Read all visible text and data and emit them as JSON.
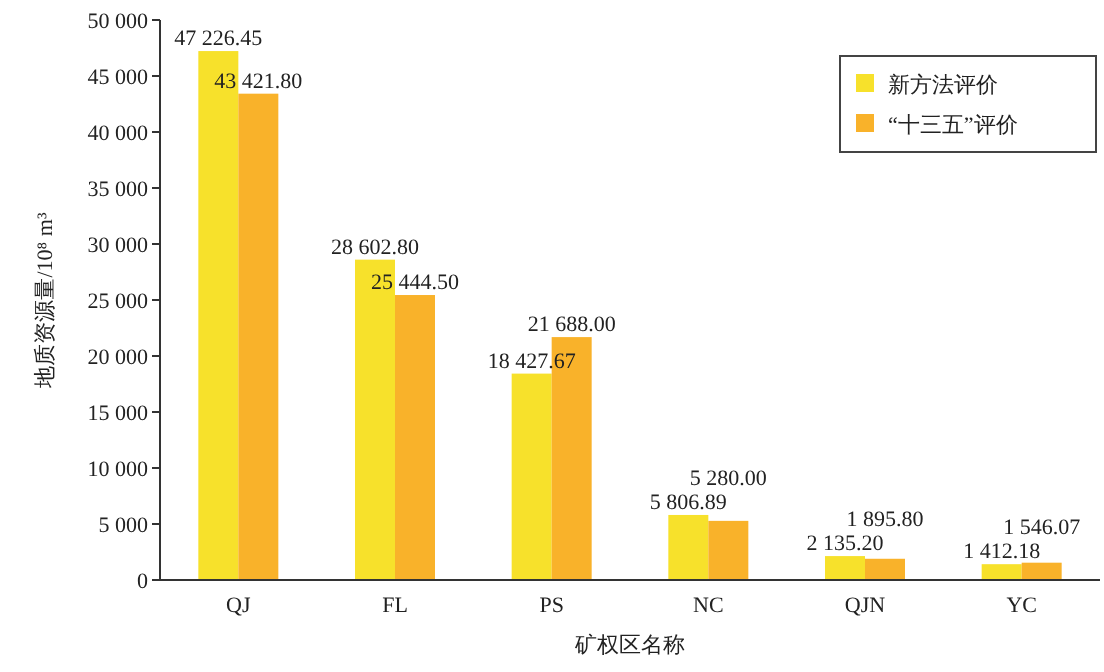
{
  "chart_data": {
    "type": "bar",
    "xlabel": "矿权区名称",
    "ylabel": "地质资源量/10⁸ m³",
    "categories": [
      "QJ",
      "FL",
      "PS",
      "NC",
      "QJN",
      "YC"
    ],
    "series": [
      {
        "name": "新方法评价",
        "color": "#f7e12b",
        "values": [
          47226.45,
          28602.8,
          18427.67,
          5806.89,
          2135.2,
          1412.18
        ],
        "value_labels": [
          "47 226.45",
          "28 602.80",
          "18 427.67",
          "5 806.89",
          "2 135.20",
          "1 412.18"
        ]
      },
      {
        "name": "“十三五”评价",
        "color": "#f9b22a",
        "values": [
          43421.8,
          25444.5,
          21688.0,
          5280.0,
          1895.8,
          1546.07
        ],
        "value_labels": [
          "43 421.80",
          "25 444.50",
          "21 688.00",
          "5 280.00",
          "1 895.80",
          "1 546.07"
        ]
      }
    ],
    "ylim": [
      0,
      50000
    ],
    "yticks": [
      {
        "value": 0,
        "label": "0"
      },
      {
        "value": 5000,
        "label": "5 000"
      },
      {
        "value": 10000,
        "label": "10 000"
      },
      {
        "value": 15000,
        "label": "15 000"
      },
      {
        "value": 20000,
        "label": "20 000"
      },
      {
        "value": 25000,
        "label": "25 000"
      },
      {
        "value": 30000,
        "label": "30 000"
      },
      {
        "value": 35000,
        "label": "35 000"
      },
      {
        "value": 40000,
        "label": "40 000"
      },
      {
        "value": 45000,
        "label": "45 000"
      },
      {
        "value": 50000,
        "label": "50 000"
      }
    ],
    "legend": "top right",
    "grid": false
  }
}
